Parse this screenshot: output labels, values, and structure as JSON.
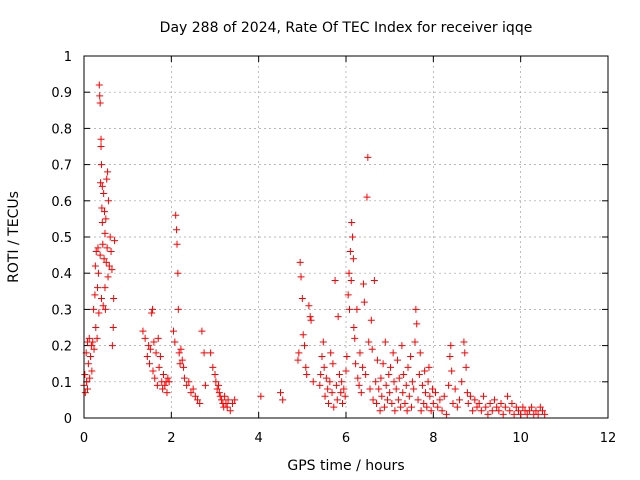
{
  "chart_data": {
    "type": "scatter",
    "title": "Day 288 of 2024, Rate Of TEC Index for receiver iqqe",
    "xlabel": "GPS time / hours",
    "ylabel": "ROTI / TECUs",
    "xlim": [
      0,
      12
    ],
    "ylim": [
      0,
      1
    ],
    "xticks": [
      "0",
      "2",
      "4",
      "6",
      "8",
      "10",
      "12"
    ],
    "yticks": [
      "0",
      "0.1",
      "0.2",
      "0.3",
      "0.4",
      "0.5",
      "0.6",
      "0.7",
      "0.8",
      "0.9",
      "1"
    ],
    "grid": true,
    "marker": "+",
    "color": "#ff0000",
    "series": [
      {
        "name": "iqqe",
        "points": [
          [
            0.0,
            0.09
          ],
          [
            0.02,
            0.12
          ],
          [
            0.03,
            0.07
          ],
          [
            0.05,
            0.18
          ],
          [
            0.06,
            0.1
          ],
          [
            0.08,
            0.21
          ],
          [
            0.08,
            0.08
          ],
          [
            0.1,
            0.15
          ],
          [
            0.12,
            0.22
          ],
          [
            0.13,
            0.11
          ],
          [
            0.15,
            0.17
          ],
          [
            0.17,
            0.2
          ],
          [
            0.18,
            0.13
          ],
          [
            0.2,
            0.21
          ],
          [
            0.22,
            0.3
          ],
          [
            0.23,
            0.19
          ],
          [
            0.25,
            0.34
          ],
          [
            0.26,
            0.42
          ],
          [
            0.27,
            0.25
          ],
          [
            0.28,
            0.46
          ],
          [
            0.3,
            0.22
          ],
          [
            0.31,
            0.36
          ],
          [
            0.32,
            0.47
          ],
          [
            0.33,
            0.4
          ],
          [
            0.34,
            0.29
          ],
          [
            0.35,
            0.92
          ],
          [
            0.36,
            0.89
          ],
          [
            0.37,
            0.87
          ],
          [
            0.37,
            0.45
          ],
          [
            0.38,
            0.65
          ],
          [
            0.39,
            0.77
          ],
          [
            0.39,
            0.75
          ],
          [
            0.4,
            0.7
          ],
          [
            0.4,
            0.33
          ],
          [
            0.41,
            0.58
          ],
          [
            0.42,
            0.64
          ],
          [
            0.42,
            0.54
          ],
          [
            0.43,
            0.48
          ],
          [
            0.44,
            0.31
          ],
          [
            0.45,
            0.62
          ],
          [
            0.46,
            0.44
          ],
          [
            0.47,
            0.57
          ],
          [
            0.48,
            0.36
          ],
          [
            0.48,
            0.51
          ],
          [
            0.49,
            0.3
          ],
          [
            0.5,
            0.55
          ],
          [
            0.51,
            0.43
          ],
          [
            0.52,
            0.66
          ],
          [
            0.53,
            0.47
          ],
          [
            0.54,
            0.68
          ],
          [
            0.55,
            0.39
          ],
          [
            0.56,
            0.6
          ],
          [
            0.58,
            0.42
          ],
          [
            0.6,
            0.5
          ],
          [
            0.62,
            0.46
          ],
          [
            0.64,
            0.41
          ],
          [
            0.65,
            0.2
          ],
          [
            0.67,
            0.25
          ],
          [
            0.68,
            0.33
          ],
          [
            0.7,
            0.49
          ],
          [
            1.35,
            0.24
          ],
          [
            1.4,
            0.22
          ],
          [
            1.45,
            0.17
          ],
          [
            1.48,
            0.2
          ],
          [
            1.5,
            0.15
          ],
          [
            1.52,
            0.19
          ],
          [
            1.55,
            0.29
          ],
          [
            1.57,
            0.3
          ],
          [
            1.58,
            0.13
          ],
          [
            1.6,
            0.21
          ],
          [
            1.62,
            0.11
          ],
          [
            1.65,
            0.18
          ],
          [
            1.68,
            0.09
          ],
          [
            1.7,
            0.22
          ],
          [
            1.72,
            0.14
          ],
          [
            1.75,
            0.17
          ],
          [
            1.78,
            0.1
          ],
          [
            1.8,
            0.08
          ],
          [
            1.82,
            0.12
          ],
          [
            1.85,
            0.09
          ],
          [
            1.88,
            0.1
          ],
          [
            1.9,
            0.07
          ],
          [
            1.92,
            0.11
          ],
          [
            1.95,
            0.1
          ],
          [
            2.05,
            0.24
          ],
          [
            2.08,
            0.21
          ],
          [
            2.1,
            0.56
          ],
          [
            2.12,
            0.52
          ],
          [
            2.13,
            0.48
          ],
          [
            2.15,
            0.4
          ],
          [
            2.16,
            0.3
          ],
          [
            2.18,
            0.18
          ],
          [
            2.2,
            0.15
          ],
          [
            2.22,
            0.19
          ],
          [
            2.25,
            0.16
          ],
          [
            2.28,
            0.14
          ],
          [
            2.3,
            0.11
          ],
          [
            2.35,
            0.09
          ],
          [
            2.4,
            0.1
          ],
          [
            2.45,
            0.07
          ],
          [
            2.5,
            0.08
          ],
          [
            2.55,
            0.06
          ],
          [
            2.6,
            0.05
          ],
          [
            2.65,
            0.04
          ],
          [
            2.7,
            0.24
          ],
          [
            2.75,
            0.18
          ],
          [
            2.78,
            0.09
          ],
          [
            2.9,
            0.18
          ],
          [
            2.95,
            0.14
          ],
          [
            3.0,
            0.12
          ],
          [
            3.02,
            0.1
          ],
          [
            3.05,
            0.08
          ],
          [
            3.08,
            0.09
          ],
          [
            3.1,
            0.07
          ],
          [
            3.12,
            0.06
          ],
          [
            3.15,
            0.05
          ],
          [
            3.18,
            0.04
          ],
          [
            3.2,
            0.03
          ],
          [
            3.22,
            0.06
          ],
          [
            3.25,
            0.04
          ],
          [
            3.28,
            0.03
          ],
          [
            3.3,
            0.05
          ],
          [
            3.35,
            0.02
          ],
          [
            3.4,
            0.04
          ],
          [
            3.45,
            0.05
          ],
          [
            4.05,
            0.06
          ],
          [
            4.5,
            0.07
          ],
          [
            4.55,
            0.05
          ],
          [
            4.9,
            0.16
          ],
          [
            4.92,
            0.18
          ],
          [
            4.95,
            0.43
          ],
          [
            4.97,
            0.39
          ],
          [
            5.0,
            0.33
          ],
          [
            5.02,
            0.23
          ],
          [
            5.05,
            0.2
          ],
          [
            5.08,
            0.14
          ],
          [
            5.1,
            0.12
          ],
          [
            5.15,
            0.31
          ],
          [
            5.18,
            0.28
          ],
          [
            5.2,
            0.27
          ],
          [
            5.25,
            0.1
          ],
          [
            5.4,
            0.09
          ],
          [
            5.42,
            0.12
          ],
          [
            5.45,
            0.17
          ],
          [
            5.48,
            0.21
          ],
          [
            5.5,
            0.14
          ],
          [
            5.52,
            0.06
          ],
          [
            5.55,
            0.11
          ],
          [
            5.58,
            0.08
          ],
          [
            5.6,
            0.04
          ],
          [
            5.63,
            0.1
          ],
          [
            5.65,
            0.18
          ],
          [
            5.68,
            0.07
          ],
          [
            5.7,
            0.15
          ],
          [
            5.72,
            0.03
          ],
          [
            5.75,
            0.38
          ],
          [
            5.78,
            0.09
          ],
          [
            5.8,
            0.05
          ],
          [
            5.82,
            0.28
          ],
          [
            5.85,
            0.12
          ],
          [
            5.88,
            0.07
          ],
          [
            5.9,
            0.1
          ],
          [
            5.92,
            0.04
          ],
          [
            5.95,
            0.08
          ],
          [
            5.98,
            0.06
          ],
          [
            6.0,
            0.13
          ],
          [
            6.02,
            0.17
          ],
          [
            6.05,
            0.34
          ],
          [
            6.07,
            0.4
          ],
          [
            6.08,
            0.3
          ],
          [
            6.1,
            0.46
          ],
          [
            6.12,
            0.38
          ],
          [
            6.13,
            0.54
          ],
          [
            6.15,
            0.5
          ],
          [
            6.17,
            0.44
          ],
          [
            6.18,
            0.25
          ],
          [
            6.2,
            0.22
          ],
          [
            6.22,
            0.15
          ],
          [
            6.25,
            0.3
          ],
          [
            6.27,
            0.11
          ],
          [
            6.3,
            0.09
          ],
          [
            6.32,
            0.18
          ],
          [
            6.35,
            0.07
          ],
          [
            6.38,
            0.14
          ],
          [
            6.4,
            0.37
          ],
          [
            6.42,
            0.32
          ],
          [
            6.45,
            0.12
          ],
          [
            6.48,
            0.61
          ],
          [
            6.5,
            0.72
          ],
          [
            6.52,
            0.21
          ],
          [
            6.55,
            0.08
          ],
          [
            6.58,
            0.27
          ],
          [
            6.6,
            0.19
          ],
          [
            6.62,
            0.05
          ],
          [
            6.65,
            0.38
          ],
          [
            6.68,
            0.1
          ],
          [
            6.7,
            0.04
          ],
          [
            6.72,
            0.16
          ],
          [
            6.75,
            0.08
          ],
          [
            6.78,
            0.02
          ],
          [
            6.8,
            0.11
          ],
          [
            6.82,
            0.06
          ],
          [
            6.85,
            0.15
          ],
          [
            6.88,
            0.03
          ],
          [
            6.9,
            0.21
          ],
          [
            6.92,
            0.09
          ],
          [
            6.95,
            0.05
          ],
          [
            6.98,
            0.12
          ],
          [
            7.0,
            0.07
          ],
          [
            7.02,
            0.14
          ],
          [
            7.05,
            0.04
          ],
          [
            7.08,
            0.18
          ],
          [
            7.1,
            0.1
          ],
          [
            7.12,
            0.02
          ],
          [
            7.15,
            0.08
          ],
          [
            7.18,
            0.16
          ],
          [
            7.2,
            0.05
          ],
          [
            7.22,
            0.11
          ],
          [
            7.25,
            0.03
          ],
          [
            7.28,
            0.2
          ],
          [
            7.3,
            0.07
          ],
          [
            7.32,
            0.12
          ],
          [
            7.35,
            0.04
          ],
          [
            7.38,
            0.09
          ],
          [
            7.4,
            0.02
          ],
          [
            7.42,
            0.14
          ],
          [
            7.45,
            0.06
          ],
          [
            7.48,
            0.17
          ],
          [
            7.5,
            0.03
          ],
          [
            7.52,
            0.1
          ],
          [
            7.55,
            0.08
          ],
          [
            7.58,
            0.21
          ],
          [
            7.6,
            0.3
          ],
          [
            7.62,
            0.26
          ],
          [
            7.65,
            0.05
          ],
          [
            7.68,
            0.12
          ],
          [
            7.7,
            0.18
          ],
          [
            7.72,
            0.02
          ],
          [
            7.75,
            0.09
          ],
          [
            7.78,
            0.04
          ],
          [
            7.8,
            0.13
          ],
          [
            7.82,
            0.07
          ],
          [
            7.85,
            0.03
          ],
          [
            7.88,
            0.1
          ],
          [
            7.9,
            0.14
          ],
          [
            7.92,
            0.06
          ],
          [
            7.95,
            0.02
          ],
          [
            7.98,
            0.08
          ],
          [
            8.0,
            0.04
          ],
          [
            8.05,
            0.07
          ],
          [
            8.1,
            0.03
          ],
          [
            8.15,
            0.05
          ],
          [
            8.2,
            0.02
          ],
          [
            8.25,
            0.06
          ],
          [
            8.3,
            0.01
          ],
          [
            8.35,
            0.09
          ],
          [
            8.38,
            0.17
          ],
          [
            8.4,
            0.2
          ],
          [
            8.42,
            0.13
          ],
          [
            8.45,
            0.04
          ],
          [
            8.5,
            0.08
          ],
          [
            8.55,
            0.03
          ],
          [
            8.6,
            0.05
          ],
          [
            8.65,
            0.1
          ],
          [
            8.7,
            0.21
          ],
          [
            8.72,
            0.18
          ],
          [
            8.75,
            0.14
          ],
          [
            8.78,
            0.07
          ],
          [
            8.8,
            0.04
          ],
          [
            8.85,
            0.06
          ],
          [
            8.9,
            0.02
          ],
          [
            8.95,
            0.05
          ],
          [
            9.0,
            0.03
          ],
          [
            9.05,
            0.04
          ],
          [
            9.1,
            0.02
          ],
          [
            9.15,
            0.06
          ],
          [
            9.2,
            0.03
          ],
          [
            9.25,
            0.01
          ],
          [
            9.3,
            0.04
          ],
          [
            9.35,
            0.02
          ],
          [
            9.4,
            0.05
          ],
          [
            9.45,
            0.03
          ],
          [
            9.5,
            0.02
          ],
          [
            9.55,
            0.04
          ],
          [
            9.6,
            0.01
          ],
          [
            9.65,
            0.03
          ],
          [
            9.7,
            0.06
          ],
          [
            9.75,
            0.02
          ],
          [
            9.8,
            0.04
          ],
          [
            9.85,
            0.01
          ],
          [
            9.9,
            0.03
          ],
          [
            9.95,
            0.02
          ],
          [
            10.0,
            0.01
          ],
          [
            10.05,
            0.03
          ],
          [
            10.1,
            0.02
          ],
          [
            10.15,
            0.01
          ],
          [
            10.2,
            0.02
          ],
          [
            10.25,
            0.03
          ],
          [
            10.3,
            0.01
          ],
          [
            10.35,
            0.02
          ],
          [
            10.4,
            0.01
          ],
          [
            10.45,
            0.03
          ],
          [
            10.5,
            0.02
          ],
          [
            10.55,
            0.01
          ]
        ]
      }
    ]
  }
}
